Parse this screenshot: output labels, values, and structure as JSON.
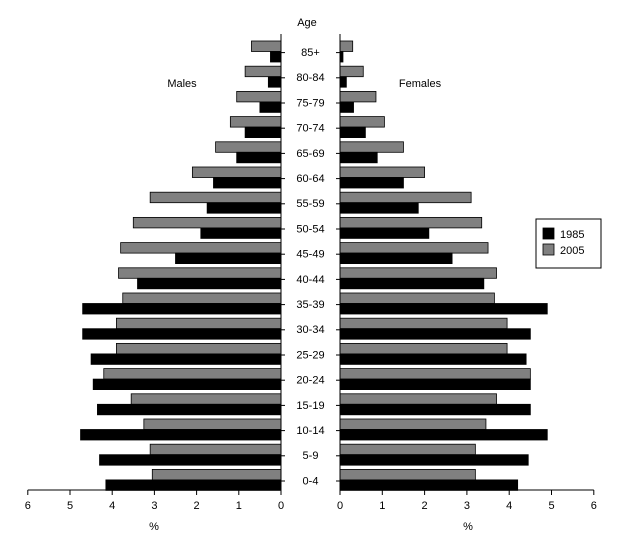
{
  "chart_data": {
    "type": "bar",
    "orientation": "horizontal",
    "layout": "population-pyramid",
    "category_axis_title": "Age",
    "categories": [
      "85+",
      "80-84",
      "75-79",
      "70-74",
      "65-69",
      "60-64",
      "55-59",
      "50-54",
      "45-49",
      "40-44",
      "35-39",
      "30-34",
      "25-29",
      "20-24",
      "15-19",
      "10-14",
      "5-9",
      "0-4"
    ],
    "panels": [
      {
        "label": "Males",
        "xlabel": "%",
        "xlim": [
          6,
          0
        ],
        "ticks": [
          6,
          5,
          4,
          3,
          2,
          1,
          0
        ]
      },
      {
        "label": "Females",
        "xlabel": "%",
        "xlim": [
          0,
          6
        ],
        "ticks": [
          0,
          1,
          2,
          3,
          4,
          5,
          6
        ]
      }
    ],
    "series": [
      {
        "name": "1985",
        "color": "#000000",
        "males": [
          0.25,
          0.3,
          0.5,
          0.85,
          1.05,
          1.6,
          1.75,
          1.9,
          2.5,
          3.4,
          4.7,
          4.7,
          4.5,
          4.45,
          4.35,
          4.75,
          4.3,
          4.15
        ],
        "females": [
          0.07,
          0.15,
          0.32,
          0.6,
          0.88,
          1.5,
          1.85,
          2.1,
          2.65,
          3.4,
          4.9,
          4.5,
          4.4,
          4.5,
          4.5,
          4.9,
          4.45,
          4.2
        ]
      },
      {
        "name": "2005",
        "color": "#808080",
        "males": [
          0.7,
          0.85,
          1.05,
          1.2,
          1.55,
          2.1,
          3.1,
          3.5,
          3.8,
          3.85,
          3.75,
          3.9,
          3.9,
          4.2,
          3.55,
          3.25,
          3.1,
          3.05
        ],
        "females": [
          0.3,
          0.55,
          0.85,
          1.05,
          1.5,
          2.0,
          3.1,
          3.35,
          3.5,
          3.7,
          3.65,
          3.95,
          3.95,
          4.5,
          3.7,
          3.45,
          3.2,
          3.2
        ]
      }
    ],
    "legend": {
      "position": "right"
    }
  }
}
